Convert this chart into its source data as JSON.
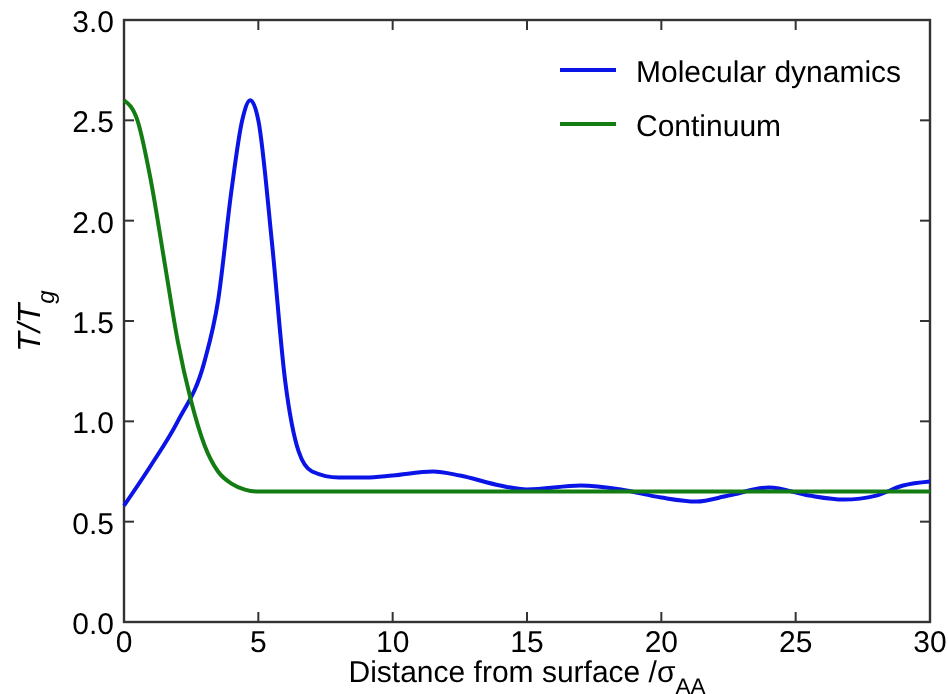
{
  "chart_data": {
    "type": "line",
    "xlabel": "Distance from surface /σ$_{AA}$",
    "ylabel": "T/T$_{g}$",
    "xlim": [
      0,
      30
    ],
    "ylim": [
      0,
      3
    ],
    "xticks": [
      0,
      5,
      10,
      15,
      20,
      25,
      30
    ],
    "yticks": [
      {
        "value": 0,
        "label": "0.0"
      },
      {
        "value": 0.5,
        "label": "0.5"
      },
      {
        "value": 1,
        "label": "1.0"
      },
      {
        "value": 1.5,
        "label": "1.5"
      },
      {
        "value": 2,
        "label": "2.0"
      },
      {
        "value": 2.5,
        "label": "2.5"
      },
      {
        "value": 3,
        "label": "3.0"
      }
    ],
    "grid": false,
    "legend": "top right",
    "marker": "none",
    "line_style": "solid",
    "series": [
      {
        "name": "Molecular dynamics",
        "color": "#0a14e6",
        "x": [
          0,
          1,
          2,
          3,
          3.5,
          4,
          4.4,
          4.7,
          5,
          5.5,
          6,
          6.5,
          7,
          8,
          9,
          10,
          11.5,
          12.5,
          14,
          15,
          17,
          18.5,
          20,
          21.3,
          22.5,
          24,
          25.5,
          26.8,
          28,
          29,
          30
        ],
        "values": [
          0.58,
          0.78,
          1.0,
          1.3,
          1.6,
          2.15,
          2.5,
          2.6,
          2.5,
          1.9,
          1.2,
          0.85,
          0.75,
          0.72,
          0.72,
          0.73,
          0.75,
          0.73,
          0.68,
          0.66,
          0.68,
          0.66,
          0.62,
          0.6,
          0.63,
          0.67,
          0.63,
          0.61,
          0.63,
          0.68,
          0.7
        ]
      },
      {
        "name": "Continuum",
        "color": "#137d13",
        "x": [
          0,
          0.5,
          1,
          1.5,
          2,
          2.5,
          3,
          3.5,
          4,
          4.5,
          5,
          30
        ],
        "values": [
          2.6,
          2.5,
          2.2,
          1.8,
          1.4,
          1.1,
          0.88,
          0.75,
          0.69,
          0.66,
          0.65,
          0.65
        ]
      }
    ]
  }
}
